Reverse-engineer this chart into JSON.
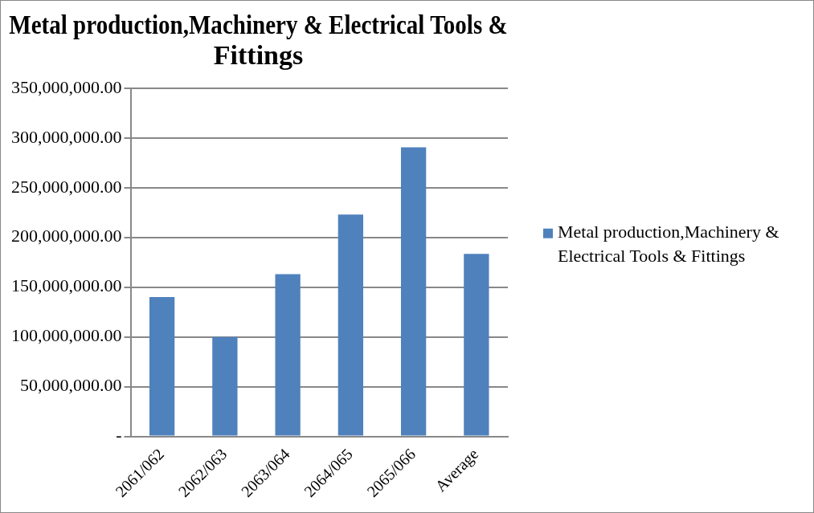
{
  "chart_data": {
    "type": "bar",
    "title": "Metal production,Machinery & Electrical Tools & Fittings",
    "categories": [
      "2061/062",
      "2062/063",
      "2063/064",
      "2064/065",
      "2065/066",
      "Average"
    ],
    "series": [
      {
        "name": "Metal production,Machinery & Electrical Tools & Fittings",
        "color": "#4f81bd",
        "values": [
          140000000,
          100000000,
          163000000,
          223000000,
          290500000,
          183500000
        ]
      }
    ],
    "ylim": [
      0,
      350000000
    ],
    "yticks": [
      {
        "value": 0,
        "label": "-"
      },
      {
        "value": 50000000,
        "label": "50,000,000.00"
      },
      {
        "value": 100000000,
        "label": "100,000,000.00"
      },
      {
        "value": 150000000,
        "label": "150,000,000.00"
      },
      {
        "value": 200000000,
        "label": "200,000,000.00"
      },
      {
        "value": 250000000,
        "label": "250,000,000.00"
      },
      {
        "value": 300000000,
        "label": "300,000,000.00"
      },
      {
        "value": 350000000,
        "label": "350,000,000.00"
      }
    ],
    "grid": "y",
    "legend": "right"
  }
}
